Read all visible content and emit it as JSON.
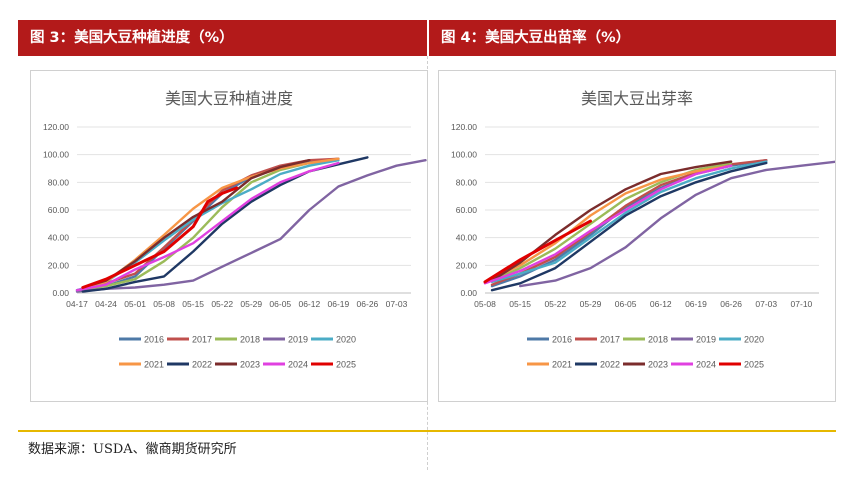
{
  "panels": {
    "left_header": "图 3：美国大豆种植进度（%）",
    "right_header": "图 4：美国大豆出苗率（%）",
    "source": "数据来源：USDA、徽商期货研究所"
  },
  "chart_data": [
    {
      "type": "line",
      "title": "美国大豆种植进度",
      "xlabel": "",
      "ylabel": "",
      "x_ticks": [
        "04-17",
        "04-24",
        "05-01",
        "05-08",
        "05-15",
        "05-22",
        "05-29",
        "06-05",
        "06-12",
        "06-19",
        "06-26",
        "07-03"
      ],
      "y_ticks": [
        "0.00",
        "20.00",
        "40.00",
        "60.00",
        "80.00",
        "100.00",
        "120.00"
      ],
      "ylim": [
        0,
        120
      ],
      "grid": true,
      "legend": "bottom",
      "series": [
        {
          "name": "2016",
          "color": "#4e79a7",
          "x": [
            0.2,
            1,
            2,
            3,
            4,
            5,
            6,
            7,
            8,
            9
          ],
          "values": [
            3,
            5,
            12,
            32,
            52,
            72,
            84,
            91,
            95,
            97
          ]
        },
        {
          "name": "2017",
          "color": "#c0504d",
          "x": [
            0.2,
            1,
            2,
            3,
            4,
            5,
            6,
            7,
            8,
            9
          ],
          "values": [
            3,
            7,
            14,
            33,
            53,
            74,
            85,
            92,
            96,
            97
          ]
        },
        {
          "name": "2018",
          "color": "#9bbb59",
          "x": [
            0,
            1,
            2,
            3,
            4,
            5,
            6,
            7,
            8,
            9
          ],
          "values": [
            2,
            5,
            10,
            23,
            40,
            62,
            80,
            89,
            94,
            96
          ]
        },
        {
          "name": "2019",
          "color": "#8064a2",
          "x": [
            0,
            1,
            2,
            3,
            4,
            5,
            6,
            7,
            8,
            9,
            10,
            11,
            12
          ],
          "values": [
            1,
            3,
            4,
            6,
            9,
            19,
            29,
            39,
            60,
            77,
            85,
            92,
            96
          ]
        },
        {
          "name": "2020",
          "color": "#4bacc6",
          "x": [
            0,
            1,
            2,
            3,
            4,
            5,
            6,
            7,
            8,
            9
          ],
          "values": [
            2,
            8,
            22,
            38,
            53,
            65,
            75,
            86,
            92,
            96
          ]
        },
        {
          "name": "2021",
          "color": "#f79646",
          "x": [
            0.2,
            1,
            2,
            3,
            4,
            5,
            6,
            7,
            8,
            9
          ],
          "values": [
            3,
            8,
            24,
            42,
            61,
            76,
            84,
            90,
            94,
            97
          ]
        },
        {
          "name": "2022",
          "color": "#1f3864",
          "x": [
            0.2,
            1,
            2,
            3,
            4,
            5,
            6,
            7,
            8,
            9,
            10
          ],
          "values": [
            1,
            3,
            8,
            12,
            30,
            50,
            66,
            78,
            88,
            93,
            98
          ]
        },
        {
          "name": "2023",
          "color": "#7b2c2c",
          "x": [
            0.2,
            1,
            2,
            3,
            4,
            5,
            6,
            7,
            8
          ],
          "values": [
            4,
            9,
            23,
            40,
            55,
            66,
            83,
            91,
            96
          ]
        },
        {
          "name": "2024",
          "color": "#e040e0",
          "x": [
            0,
            1,
            2,
            3,
            4,
            5,
            6,
            7,
            8,
            9
          ],
          "values": [
            2,
            6,
            17,
            26,
            36,
            52,
            68,
            80,
            88,
            94
          ]
        },
        {
          "name": "2025",
          "color": "#e00000",
          "x": [
            0.2,
            1,
            2,
            3,
            4,
            4.5,
            5,
            5.5
          ],
          "values": [
            4,
            10,
            20,
            30,
            48,
            66,
            72,
            76
          ]
        }
      ]
    },
    {
      "type": "line",
      "title": "美国大豆出芽率",
      "xlabel": "",
      "ylabel": "",
      "x_ticks": [
        "05-08",
        "05-15",
        "05-22",
        "05-29",
        "06-05",
        "06-12",
        "06-19",
        "06-26",
        "07-03",
        "07-10"
      ],
      "y_ticks": [
        "0.00",
        "20.00",
        "40.00",
        "60.00",
        "80.00",
        "100.00",
        "120.00"
      ],
      "ylim": [
        0,
        120
      ],
      "grid": true,
      "legend": "bottom",
      "series": [
        {
          "name": "2016",
          "color": "#4e79a7",
          "x": [
            0.2,
            1,
            2,
            3,
            4,
            5,
            6,
            7,
            8
          ],
          "values": [
            5,
            12,
            24,
            42,
            62,
            76,
            86,
            92,
            96
          ]
        },
        {
          "name": "2017",
          "color": "#c0504d",
          "x": [
            0.2,
            1,
            2,
            3,
            4,
            5,
            6,
            7,
            8
          ],
          "values": [
            6,
            14,
            26,
            44,
            63,
            78,
            87,
            93,
            96
          ]
        },
        {
          "name": "2018",
          "color": "#9bbb59",
          "x": [
            0.2,
            1,
            2,
            3,
            4,
            5,
            6,
            7
          ],
          "values": [
            9,
            18,
            32,
            50,
            68,
            80,
            89,
            94
          ]
        },
        {
          "name": "2019",
          "color": "#8064a2",
          "x": [
            1,
            2,
            3,
            4,
            5,
            6,
            7,
            8,
            9,
            10,
            11
          ],
          "values": [
            5,
            9,
            18,
            33,
            54,
            71,
            83,
            89,
            92,
            95,
            96
          ]
        },
        {
          "name": "2020",
          "color": "#4bacc6",
          "x": [
            0.2,
            1,
            2,
            3,
            4,
            5,
            6,
            7,
            8
          ],
          "values": [
            8,
            14,
            22,
            40,
            58,
            73,
            83,
            90,
            95
          ]
        },
        {
          "name": "2021",
          "color": "#f79646",
          "x": [
            0,
            1,
            2,
            3,
            4,
            5,
            6,
            7
          ],
          "values": [
            8,
            20,
            36,
            56,
            72,
            82,
            88,
            92
          ]
        },
        {
          "name": "2022",
          "color": "#1f3864",
          "x": [
            0.2,
            1,
            2,
            3,
            4,
            5,
            6,
            7,
            8
          ],
          "values": [
            2,
            7,
            18,
            37,
            56,
            70,
            80,
            88,
            94
          ]
        },
        {
          "name": "2023",
          "color": "#7b2c2c",
          "x": [
            0.2,
            1,
            2,
            3,
            4,
            5,
            6,
            7
          ],
          "values": [
            9,
            22,
            42,
            60,
            75,
            86,
            91,
            95
          ]
        },
        {
          "name": "2024",
          "color": "#e040e0",
          "x": [
            0,
            1,
            2,
            3,
            4,
            5,
            6,
            7
          ],
          "values": [
            7,
            16,
            28,
            45,
            60,
            75,
            86,
            92
          ]
        },
        {
          "name": "2025",
          "color": "#e00000",
          "x": [
            0,
            1,
            2,
            3
          ],
          "values": [
            8,
            24,
            38,
            52
          ]
        }
      ]
    }
  ]
}
